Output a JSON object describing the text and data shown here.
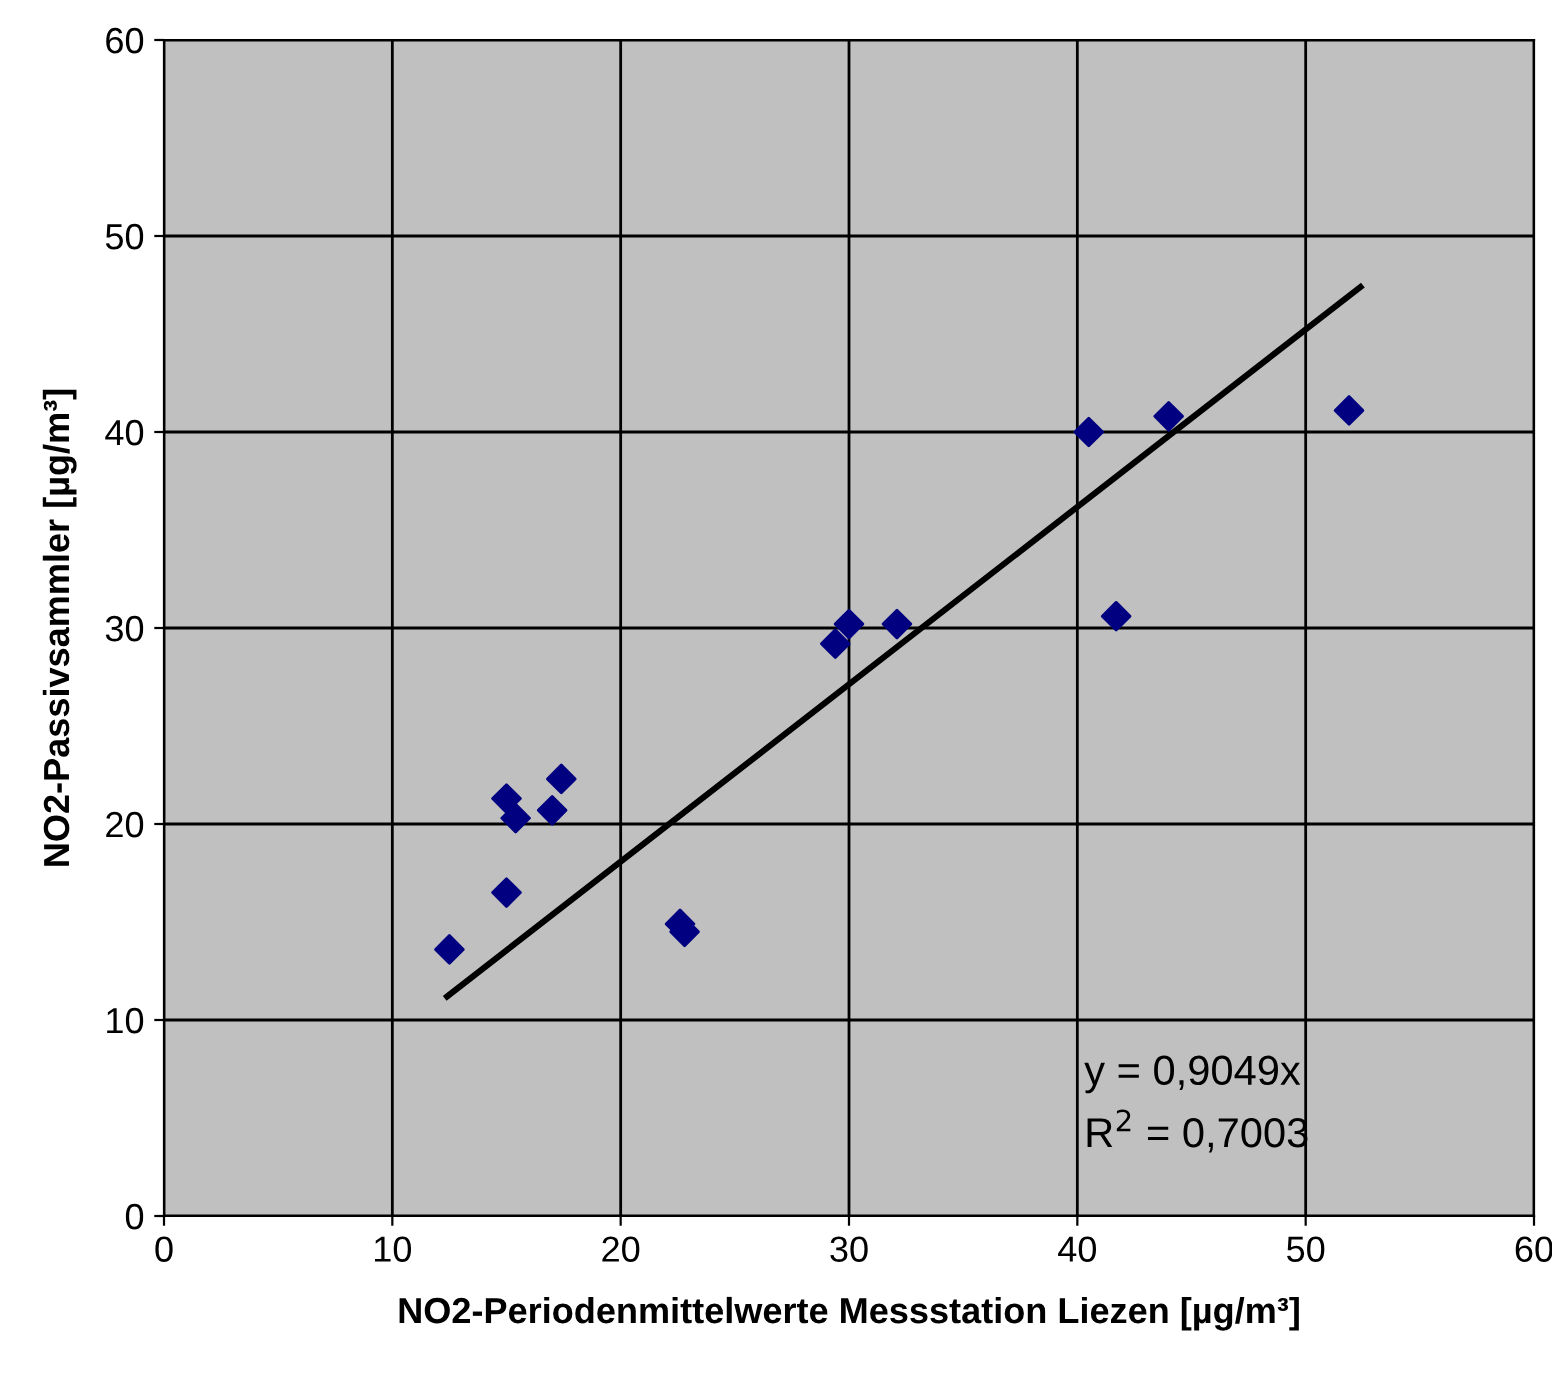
{
  "chart_data": {
    "type": "scatter",
    "xlabel": "NO2-Periodenmittelwerte Messstation Liezen [µg/m³]",
    "ylabel": "NO2-Passivsammler [µg/m³]",
    "xlim": [
      0,
      60
    ],
    "xticks": [
      0,
      10,
      20,
      30,
      40,
      50,
      60
    ],
    "ylim": [
      0,
      60
    ],
    "yticks": [
      0,
      10,
      20,
      30,
      40,
      50,
      60
    ],
    "grid": true,
    "marker": "diamond",
    "series": [
      {
        "color": "#000080",
        "x": [
          12.5,
          15.0,
          15.0,
          15.4,
          17.0,
          17.4,
          22.6,
          22.8,
          29.4,
          30.0,
          32.1,
          40.5,
          41.7,
          44.0,
          51.9
        ],
        "values": [
          13.6,
          21.3,
          16.5,
          20.3,
          20.7,
          22.3,
          14.9,
          14.5,
          29.2,
          30.2,
          30.2,
          40.0,
          30.6,
          40.8,
          41.1
        ]
      },
      {
        "type": "line",
        "marker": "none",
        "color": "#000000",
        "x": [
          12.4,
          52.4
        ],
        "values": [
          11.2,
          47.4
        ]
      }
    ],
    "annotations": [
      "y = 0,9049x",
      "R$^{2}$ = 0,7003"
    ]
  }
}
